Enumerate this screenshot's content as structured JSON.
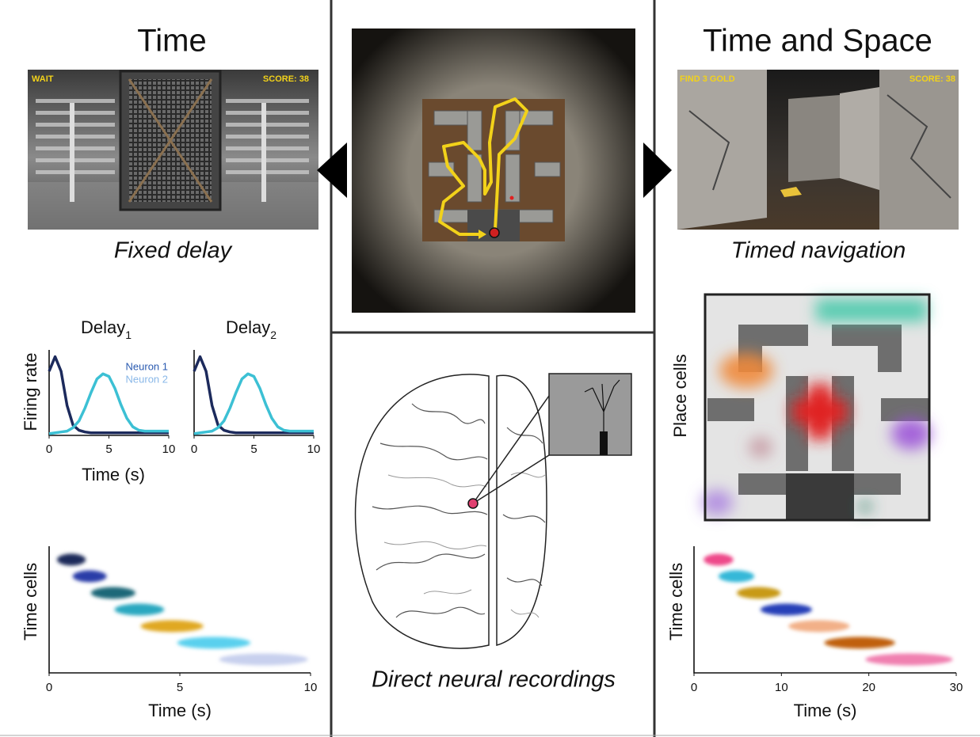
{
  "left": {
    "title": "Time",
    "game": {
      "status": "WAIT",
      "score": "SCORE: 38"
    },
    "caption": "Fixed delay",
    "firing_rate": {
      "type": "line",
      "panel_titles": [
        {
          "text": "Delay",
          "subscript": "1"
        },
        {
          "text": "Delay",
          "subscript": "2"
        }
      ],
      "y_label": "Firing rate",
      "x_label": "Time (s)",
      "xlim": [
        0,
        10
      ],
      "xticks": [
        0,
        5,
        10
      ],
      "x": [
        0,
        0.5,
        1,
        1.5,
        2,
        2.5,
        3,
        3.5,
        4,
        4.5,
        5,
        5.5,
        6,
        6.5,
        7,
        7.5,
        8,
        8.5,
        9,
        9.5,
        10
      ],
      "series": [
        {
          "name": "Neuron 1",
          "color": "#1c2a5c",
          "values": [
            0.75,
            0.92,
            0.75,
            0.35,
            0.12,
            0.06,
            0.04,
            0.03,
            0.03,
            0.03,
            0.03,
            0.03,
            0.03,
            0.03,
            0.03,
            0.03,
            0.03,
            0.03,
            0.03,
            0.03,
            0.03
          ]
        },
        {
          "name": "Neuron 2",
          "color": "#3cc0d4",
          "values": [
            0.02,
            0.03,
            0.04,
            0.05,
            0.09,
            0.17,
            0.32,
            0.5,
            0.66,
            0.72,
            0.69,
            0.55,
            0.36,
            0.2,
            0.1,
            0.06,
            0.05,
            0.05,
            0.05,
            0.05,
            0.05
          ]
        }
      ]
    },
    "time_cells": {
      "type": "range",
      "y_label": "Time cells",
      "x_label": "Time (s)",
      "xlim": [
        0,
        10
      ],
      "xticks": [
        0,
        5,
        10
      ],
      "cells": [
        {
          "start": 0.3,
          "end": 1.4,
          "color": "#1e2a5a"
        },
        {
          "start": 0.9,
          "end": 2.2,
          "color": "#2a3ea8"
        },
        {
          "start": 1.6,
          "end": 3.3,
          "color": "#1a6878"
        },
        {
          "start": 2.5,
          "end": 4.4,
          "color": "#2aa8c0"
        },
        {
          "start": 3.5,
          "end": 5.9,
          "color": "#e0a820"
        },
        {
          "start": 4.9,
          "end": 7.7,
          "color": "#5ad0ee"
        },
        {
          "start": 6.5,
          "end": 9.9,
          "color": "#c8d0ee"
        }
      ]
    }
  },
  "center": {
    "caption": "Direct neural recordings"
  },
  "right": {
    "title": "Time and Space",
    "game": {
      "status": "FIND 3 GOLD",
      "score": "SCORE: 38"
    },
    "caption": "Timed navigation",
    "place_cells": {
      "y_label": "Place cells"
    },
    "time_cells": {
      "type": "range",
      "y_label": "Time cells",
      "x_label": "Time (s)",
      "xlim": [
        0,
        30
      ],
      "xticks": [
        0,
        10,
        20,
        30
      ],
      "cells": [
        {
          "start": 1.1,
          "end": 4.5,
          "color": "#ee4a8a"
        },
        {
          "start": 2.8,
          "end": 6.9,
          "color": "#35b8d8"
        },
        {
          "start": 4.9,
          "end": 9.9,
          "color": "#c89a18"
        },
        {
          "start": 7.6,
          "end": 13.5,
          "color": "#2840b8"
        },
        {
          "start": 10.8,
          "end": 17.8,
          "color": "#f2b088"
        },
        {
          "start": 14.9,
          "end": 23.0,
          "color": "#c0600e"
        },
        {
          "start": 19.6,
          "end": 29.6,
          "color": "#f080b0"
        }
      ]
    }
  }
}
